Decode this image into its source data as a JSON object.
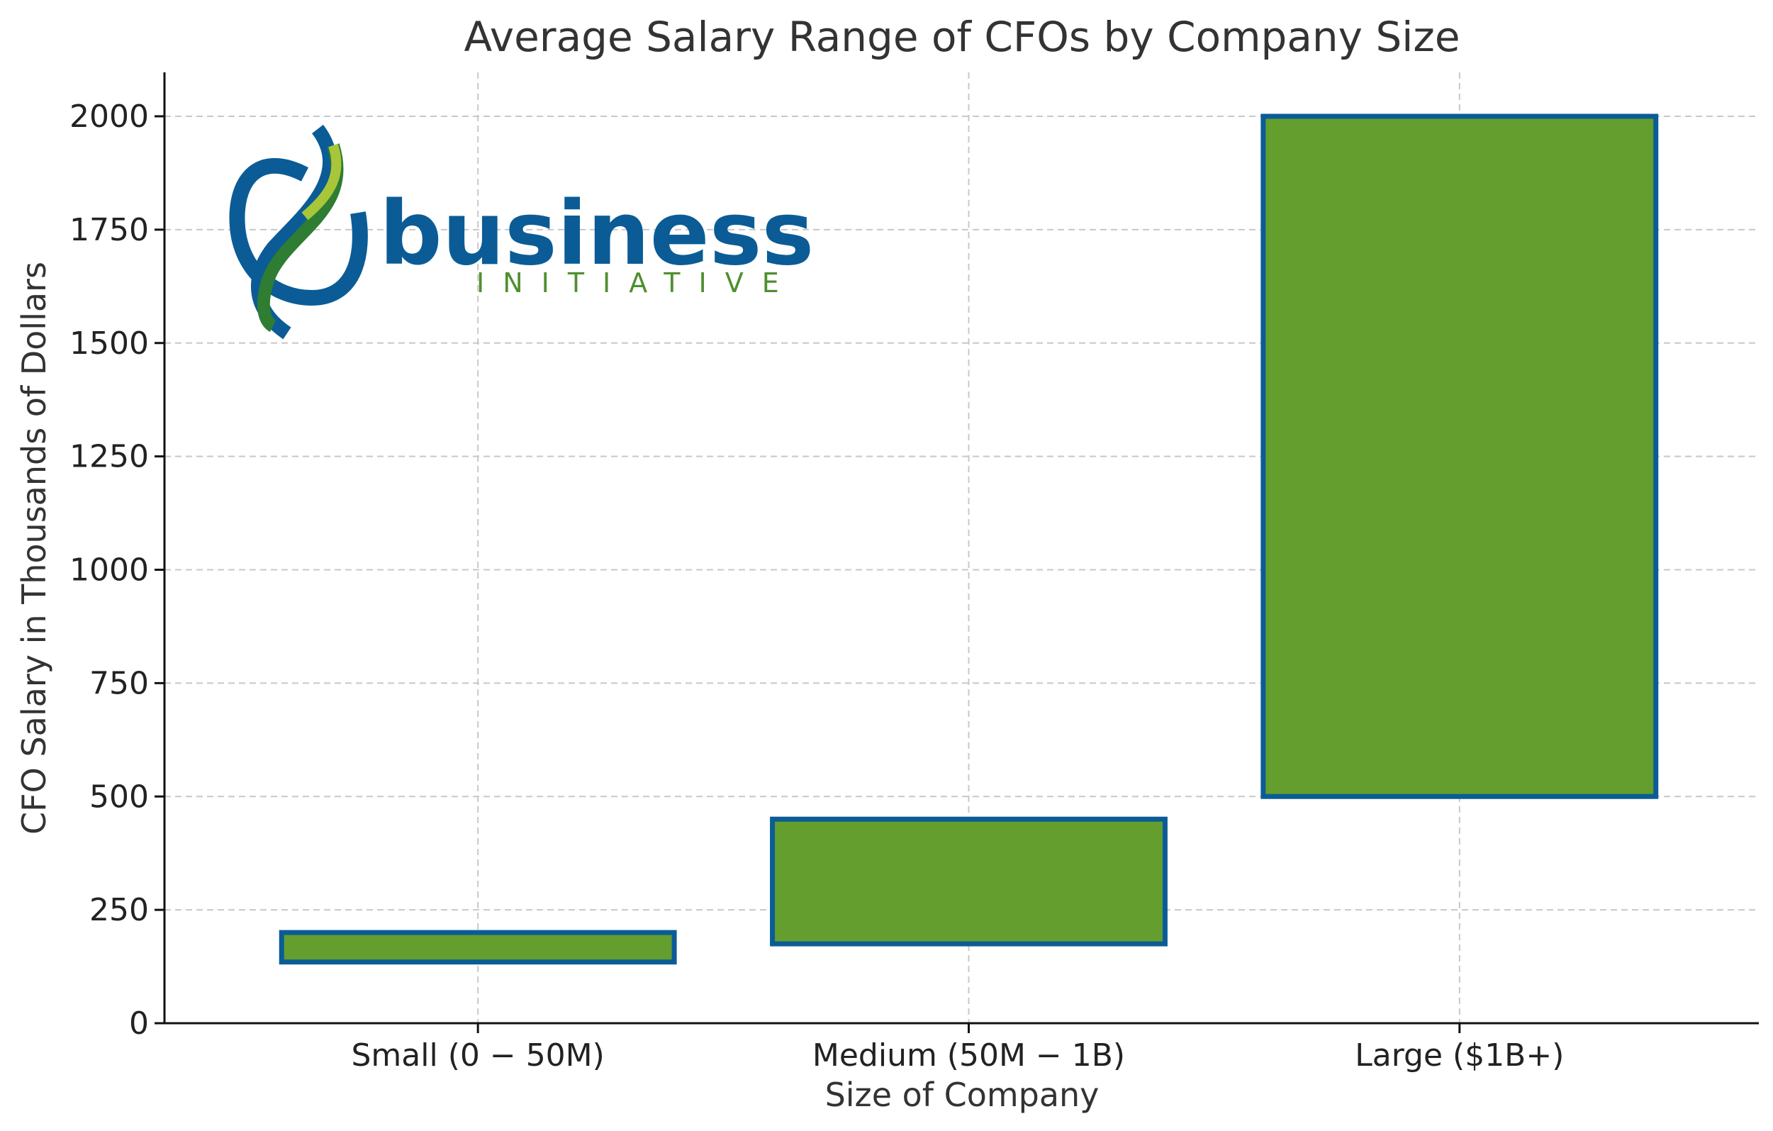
{
  "chart_data": {
    "type": "bar",
    "title": "Average Salary Range of CFOs by Company Size",
    "xlabel": "Size of Company",
    "ylabel": "CFO Salary in Thousands of Dollars",
    "categories": [
      "Small (0 − 50M)",
      "Medium (50M − 1B)",
      "Large ($1B+)"
    ],
    "ranges": [
      {
        "low": 135,
        "high": 200
      },
      {
        "low": 175,
        "high": 450
      },
      {
        "low": 500,
        "high": 2000
      }
    ],
    "ylim": [
      0,
      2100
    ],
    "yticks": [
      0,
      250,
      500,
      750,
      1000,
      1250,
      1500,
      1750,
      2000
    ],
    "grid": true,
    "bar_fill": "#639e2e",
    "bar_edge": "#0b5c96"
  },
  "logo": {
    "word": "business",
    "tagline": "INITIATIVE",
    "primary_color": "#0b5c96",
    "accent_green": "#2e7d32",
    "accent_lime": "#a8c639"
  }
}
